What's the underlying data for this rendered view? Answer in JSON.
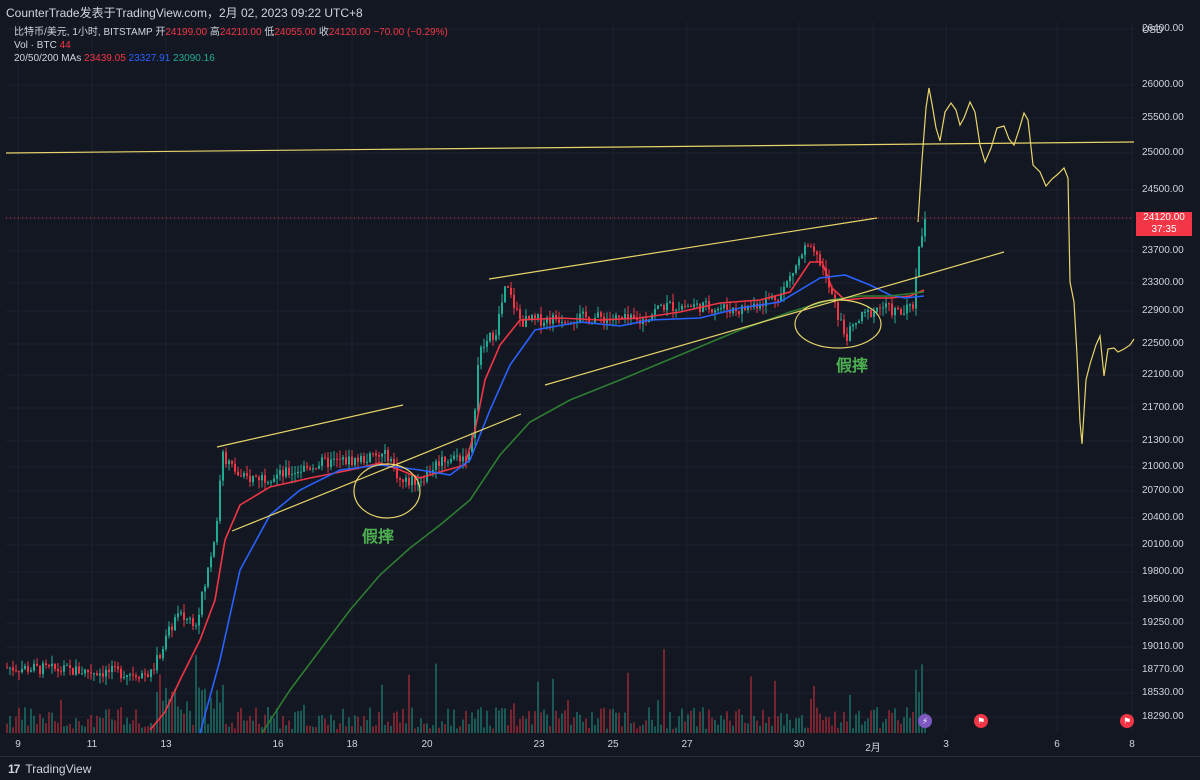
{
  "header": {
    "title": "CounterTrade发表于TradingView.com，2月 02, 2023 09:22 UTC+8"
  },
  "legend": {
    "symbol": "比特币/美元, 1小时, BITSTAMP",
    "open_label": "开",
    "open": "24199.00",
    "high_label": "高",
    "high": "24210.00",
    "low_label": "低",
    "low": "24055.00",
    "close_label": "收",
    "close": "24120.00",
    "change": "−70.00 (−0.29%)",
    "vol_label": "Vol · BTC",
    "vol_value": "44",
    "ma_label": "20/50/200 MAs",
    "ma20": "23439.05",
    "ma50": "23327.91",
    "ma200": "23090.16"
  },
  "price_axis": {
    "currency": "USD",
    "ticks": [
      "26400.00",
      "26000.00",
      "25500.00",
      "25000.00",
      "24500.00",
      "24120.00",
      "23700.00",
      "23300.00",
      "22900.00",
      "22500.00",
      "22100.00",
      "21700.00",
      "21300.00",
      "21000.00",
      "20700.00",
      "20400.00",
      "20100.00",
      "19800.00",
      "19500.00",
      "19250.00",
      "19010.00",
      "18770.00",
      "18530.00",
      "18290.00"
    ],
    "current_price": "24120.00",
    "countdown": "37:35"
  },
  "time_axis": {
    "ticks": [
      "9",
      "11",
      "13",
      "16",
      "18",
      "20",
      "23",
      "25",
      "27",
      "30",
      "2月",
      "3",
      "6",
      "8"
    ]
  },
  "annotations": {
    "fake_break_1": "假摔",
    "fake_break_2": "假摔"
  },
  "footer": {
    "brand": "TradingView"
  },
  "colors": {
    "background": "#131722",
    "bull": "#22ab94",
    "bear": "#f23645",
    "ma20": "#f23645",
    "ma50": "#2962ff",
    "ma200": "#2e7d32",
    "drawing": "#e8d46a",
    "annotation": "#4caf50"
  },
  "chart_data": {
    "type": "candlestick",
    "symbol": "比特币/美元",
    "interval": "1小时",
    "ylim": [
      18200,
      26600
    ],
    "key_prices": {
      "jan13_start": 18300,
      "jan14_high": 21200,
      "jan21_high": 23300,
      "jan30_high": 23900,
      "jan31_dip": 22600,
      "last": 24120
    },
    "drawn_projection": [
      25950,
      25300,
      25550,
      24800,
      25400,
      24700,
      24600,
      21300,
      22600,
      22100,
      22500
    ]
  }
}
